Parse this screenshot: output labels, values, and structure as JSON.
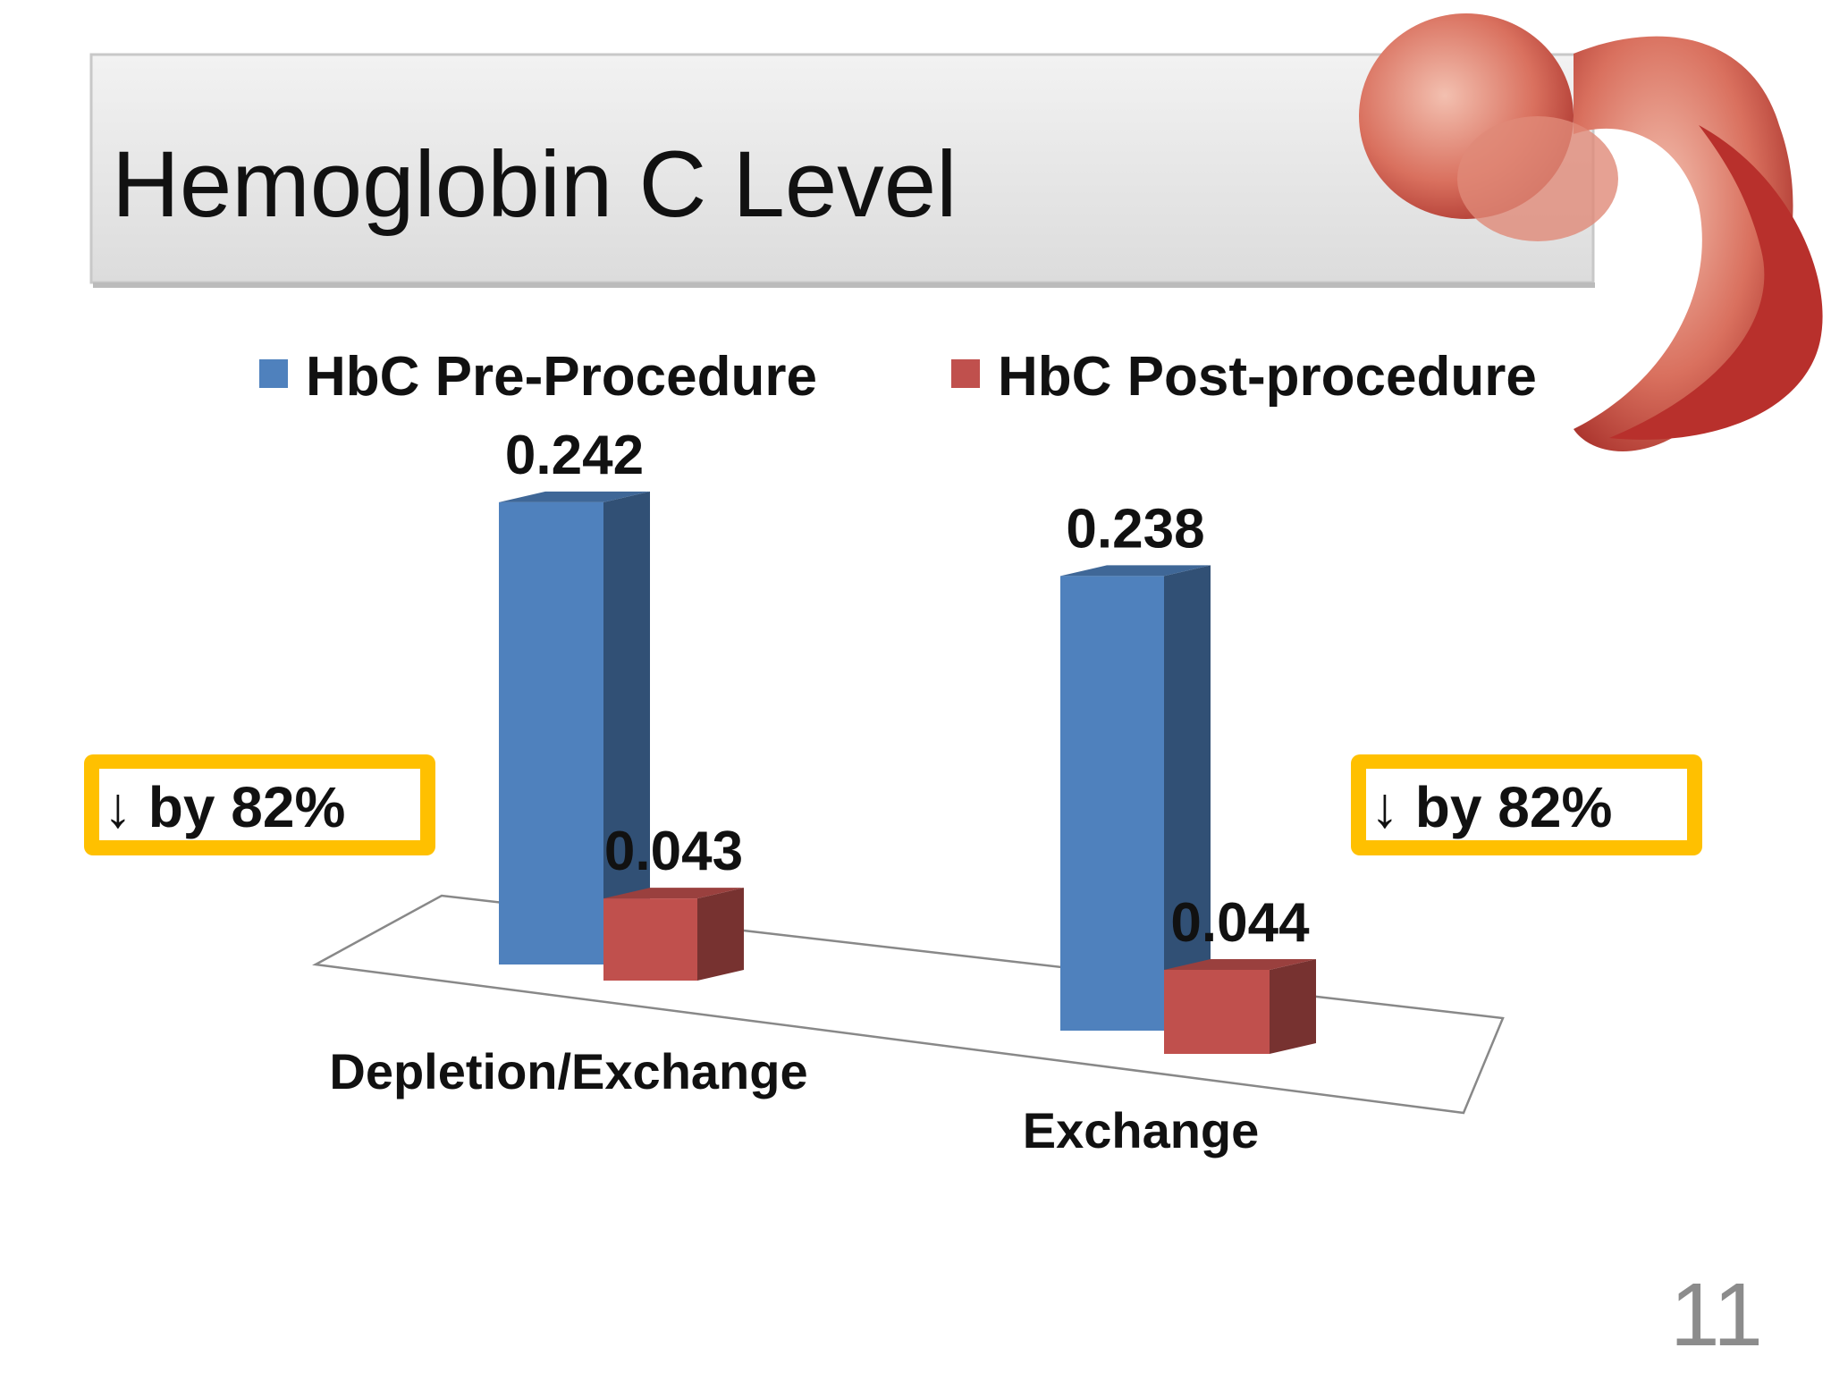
{
  "chart_data": {
    "type": "bar3d",
    "title": "Hemoglobin C Level",
    "categories": [
      "Depletion/Exchange",
      "Exchange"
    ],
    "series": [
      {
        "name": "HbC Pre-Procedure",
        "color": "#4f81bd",
        "values": [
          0.242,
          0.238
        ]
      },
      {
        "name": "HbC Post-procedure",
        "color": "#c0504d",
        "values": [
          0.043,
          0.044
        ]
      }
    ],
    "annotations": [
      "↓ by 82%",
      "↓ by 82%"
    ],
    "page_number": "11"
  }
}
